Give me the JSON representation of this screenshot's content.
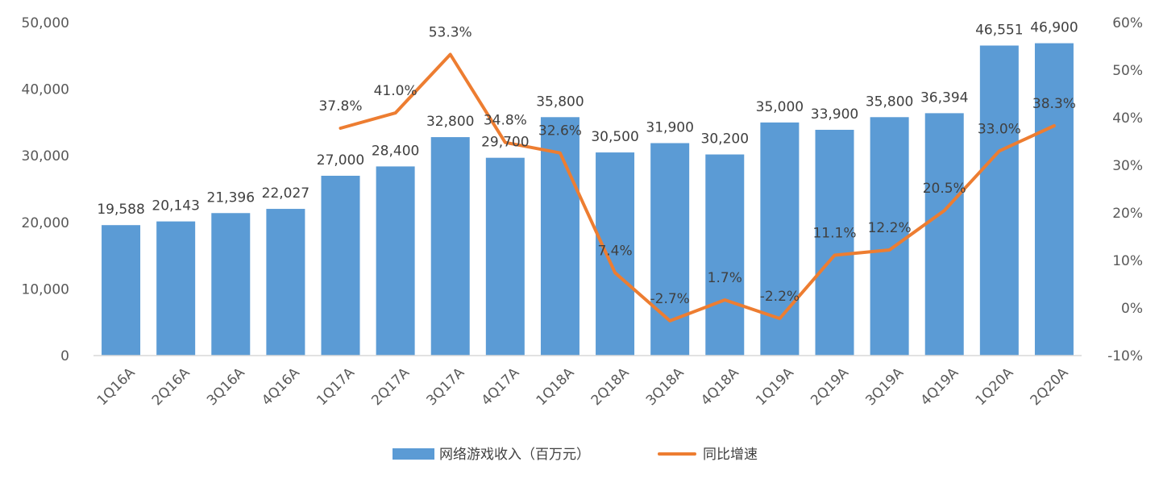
{
  "chart_data": {
    "type": "bar",
    "categories": [
      "1Q16A",
      "2Q16A",
      "3Q16A",
      "4Q16A",
      "1Q17A",
      "2Q17A",
      "3Q17A",
      "4Q17A",
      "1Q18A",
      "2Q18A",
      "3Q18A",
      "4Q18A",
      "1Q19A",
      "2Q19A",
      "3Q19A",
      "4Q19A",
      "1Q20A",
      "2Q20A"
    ],
    "series": [
      {
        "name": "网络游戏收入（百万元）",
        "type": "bar",
        "axis": "left",
        "values": [
          19588,
          20143,
          21396,
          22027,
          27000,
          28400,
          32800,
          29700,
          35800,
          30500,
          31900,
          30200,
          35000,
          33900,
          35800,
          36394,
          46551,
          46900
        ],
        "labels": [
          "19,588",
          "20,143",
          "21,396",
          "22,027",
          "27,000",
          "28,400",
          "32,800",
          "29,700",
          "35,800",
          "30,500",
          "31,900",
          "30,200",
          "35,000",
          "33,900",
          "35,800",
          "36,394",
          "46,551",
          "46,900"
        ]
      },
      {
        "name": "同比增速",
        "type": "line",
        "axis": "right",
        "values": [
          null,
          null,
          null,
          null,
          37.8,
          41.0,
          53.3,
          34.8,
          32.6,
          7.4,
          -2.7,
          1.7,
          -2.2,
          11.1,
          12.2,
          20.5,
          33.0,
          38.3
        ],
        "labels": [
          "",
          "",
          "",
          "",
          "37.8%",
          "41.0%",
          "53.3%",
          "34.8%",
          "32.6%",
          "7.4%",
          "-2.7%",
          "1.7%",
          "-2.2%",
          "11.1%",
          "12.2%",
          "20.5%",
          "33.0%",
          "38.3%"
        ]
      }
    ],
    "y_left": {
      "min": 0,
      "max": 50000,
      "ticks": [
        "0",
        "10,000",
        "20,000",
        "30,000",
        "40,000",
        "50,000"
      ]
    },
    "y_right": {
      "min": -10,
      "max": 60,
      "ticks": [
        "-10%",
        "0%",
        "10%",
        "20%",
        "30%",
        "40%",
        "50%",
        "60%"
      ]
    },
    "colors": {
      "bar": "#5B9BD5",
      "line": "#ED7D31",
      "axis": "#D9D9D9"
    },
    "legend": {
      "position": "bottom",
      "items": [
        "网络游戏收入（百万元）",
        "同比增速"
      ]
    },
    "grid": false
  }
}
